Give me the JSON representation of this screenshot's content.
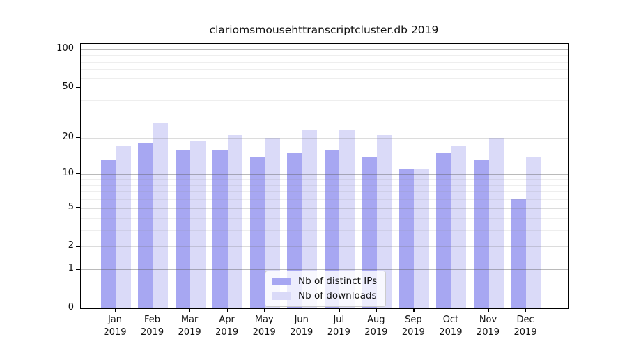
{
  "chart_data": {
    "type": "bar",
    "title": "clariomsmousehttranscriptcluster.db 2019",
    "categories": [
      "Jan",
      "Feb",
      "Mar",
      "Apr",
      "May",
      "Jun",
      "Jul",
      "Aug",
      "Sep",
      "Oct",
      "Nov",
      "Dec"
    ],
    "year_label": "2019",
    "series": [
      {
        "name": "Nb of distinct IPs",
        "key": "distinct-ips",
        "color": "#a7a7f2",
        "values": [
          13,
          18,
          16,
          16,
          14,
          15,
          16,
          14,
          11,
          15,
          13,
          6
        ]
      },
      {
        "name": "Nb of downloads",
        "key": "downloads",
        "color": "#dadaf8",
        "values": [
          17,
          26,
          19,
          21,
          20,
          23,
          23,
          21,
          11,
          17,
          20,
          14
        ]
      }
    ],
    "yscale": "log1p",
    "ylim": [
      0,
      110
    ],
    "yticks": [
      0,
      1,
      2,
      5,
      10,
      20,
      50,
      100
    ],
    "major_gridlines": [
      1,
      10,
      100
    ],
    "medium_gridlines": [
      2,
      5,
      20,
      50
    ],
    "minor_gridlines": [
      3,
      4,
      6,
      7,
      8,
      9,
      30,
      40,
      60,
      70,
      80,
      90
    ],
    "grid": true,
    "legend_position": "lower center",
    "xlabel": "",
    "ylabel": ""
  }
}
